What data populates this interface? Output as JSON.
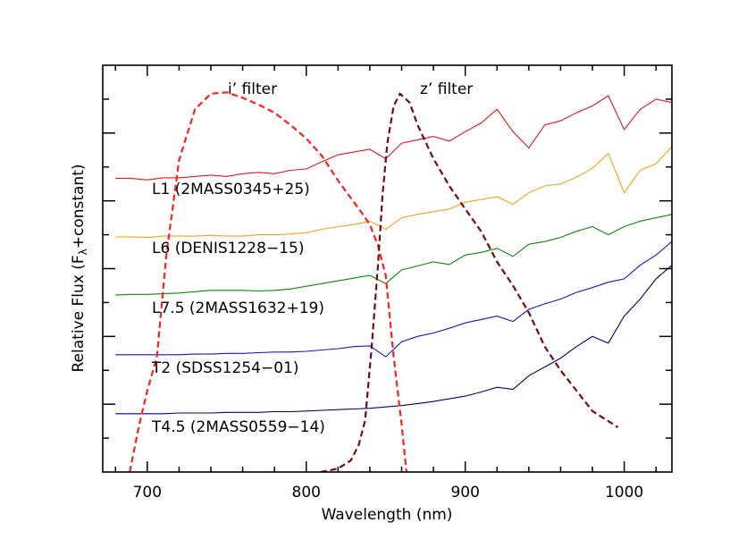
{
  "chart_data": {
    "type": "line",
    "xlabel": "Wavelength (nm)",
    "ylabel": [
      "Relative Flux (F",
      "λ",
      "+constant)"
    ],
    "xlim": [
      672,
      1030
    ],
    "xticks": [
      700,
      800,
      900,
      1000
    ],
    "xminor_ticks": [
      680,
      720,
      740,
      760,
      780,
      820,
      840,
      860,
      880,
      920,
      940,
      960,
      980,
      1020
    ],
    "ylim": [
      0,
      6
    ],
    "yticks": [
      1,
      2,
      3,
      4,
      5
    ],
    "yminor_ticks": [
      0.5,
      1.5,
      2.5,
      3.5,
      4.5,
      5.5
    ],
    "series": [
      {
        "name": "L1 (2MASS0345+25)",
        "color": "#e8141c",
        "style": "solid",
        "x": [
          680,
          690,
          700,
          710,
          720,
          730,
          740,
          750,
          760,
          770,
          780,
          790,
          800,
          810,
          820,
          830,
          840,
          850,
          860,
          870,
          880,
          890,
          900,
          910,
          920,
          930,
          940,
          950,
          960,
          970,
          980,
          990,
          1000,
          1010,
          1020,
          1030
        ],
        "values": [
          4.33,
          4.33,
          4.31,
          4.34,
          4.34,
          4.36,
          4.38,
          4.36,
          4.4,
          4.42,
          4.4,
          4.45,
          4.47,
          4.58,
          4.68,
          4.72,
          4.76,
          4.62,
          4.85,
          4.9,
          4.95,
          4.88,
          5.02,
          5.15,
          5.35,
          5.02,
          4.78,
          5.12,
          5.18,
          5.3,
          5.4,
          5.55,
          5.05,
          5.35,
          5.5,
          5.45
        ]
      },
      {
        "name": "L6 (DENIS1228−15)",
        "color": "#f5a316",
        "style": "solid",
        "x": [
          680,
          690,
          700,
          710,
          720,
          730,
          740,
          750,
          760,
          770,
          780,
          790,
          800,
          810,
          820,
          830,
          840,
          850,
          860,
          870,
          880,
          890,
          900,
          910,
          920,
          930,
          940,
          950,
          960,
          970,
          980,
          990,
          1000,
          1010,
          1020,
          1030
        ],
        "values": [
          3.47,
          3.47,
          3.46,
          3.48,
          3.48,
          3.48,
          3.49,
          3.48,
          3.48,
          3.5,
          3.5,
          3.51,
          3.53,
          3.58,
          3.62,
          3.65,
          3.7,
          3.58,
          3.75,
          3.8,
          3.84,
          3.88,
          3.98,
          4.02,
          4.06,
          3.95,
          4.12,
          4.22,
          4.25,
          4.35,
          4.48,
          4.7,
          4.12,
          4.45,
          4.55,
          4.8
        ]
      },
      {
        "name": "L7.5 (2MASS1632+19)",
        "color": "#0a880a",
        "style": "solid",
        "x": [
          680,
          690,
          700,
          710,
          720,
          730,
          740,
          750,
          760,
          770,
          780,
          790,
          800,
          810,
          820,
          830,
          840,
          850,
          860,
          870,
          880,
          890,
          900,
          910,
          920,
          930,
          940,
          950,
          960,
          970,
          980,
          990,
          1000,
          1010,
          1020,
          1030
        ],
        "values": [
          2.61,
          2.62,
          2.62,
          2.63,
          2.64,
          2.66,
          2.68,
          2.68,
          2.68,
          2.67,
          2.68,
          2.7,
          2.74,
          2.78,
          2.82,
          2.86,
          2.9,
          2.78,
          2.98,
          3.04,
          3.1,
          3.06,
          3.2,
          3.24,
          3.3,
          3.18,
          3.36,
          3.4,
          3.46,
          3.55,
          3.62,
          3.5,
          3.62,
          3.7,
          3.75,
          3.8
        ]
      },
      {
        "name": "T2 (SDSS1254−01)",
        "color": "#1414d2",
        "style": "solid",
        "x": [
          680,
          690,
          700,
          710,
          720,
          730,
          740,
          750,
          760,
          770,
          780,
          790,
          800,
          810,
          820,
          830,
          840,
          850,
          860,
          870,
          880,
          890,
          900,
          910,
          920,
          930,
          940,
          950,
          960,
          970,
          980,
          990,
          1000,
          1010,
          1020,
          1030
        ],
        "values": [
          1.73,
          1.73,
          1.73,
          1.73,
          1.73,
          1.74,
          1.74,
          1.75,
          1.75,
          1.76,
          1.77,
          1.77,
          1.78,
          1.8,
          1.82,
          1.85,
          1.86,
          1.7,
          1.92,
          2.0,
          2.05,
          2.12,
          2.2,
          2.25,
          2.3,
          2.22,
          2.4,
          2.48,
          2.55,
          2.65,
          2.72,
          2.8,
          2.85,
          3.05,
          3.2,
          3.4
        ]
      },
      {
        "name": "T4.5 (2MASS0559−14)",
        "color": "#00007a",
        "style": "solid",
        "x": [
          680,
          690,
          700,
          710,
          720,
          730,
          740,
          750,
          760,
          770,
          780,
          790,
          800,
          810,
          820,
          830,
          840,
          850,
          860,
          870,
          880,
          890,
          900,
          910,
          920,
          930,
          940,
          950,
          960,
          970,
          980,
          990,
          1000,
          1010,
          1020,
          1030
        ],
        "values": [
          0.86,
          0.86,
          0.86,
          0.86,
          0.87,
          0.87,
          0.87,
          0.88,
          0.88,
          0.88,
          0.89,
          0.89,
          0.9,
          0.91,
          0.92,
          0.93,
          0.94,
          0.96,
          0.98,
          1.01,
          1.04,
          1.08,
          1.12,
          1.18,
          1.25,
          1.22,
          1.42,
          1.55,
          1.68,
          1.85,
          2.0,
          1.9,
          2.3,
          2.55,
          2.85,
          3.05
        ]
      },
      {
        "name": "i’ filter",
        "color": "#ff2020",
        "style": "dashed",
        "x": [
          689,
          695,
          700,
          706,
          712,
          720,
          730,
          740,
          750,
          760,
          770,
          780,
          790,
          800,
          810,
          820,
          830,
          835,
          840,
          845,
          850,
          855,
          860,
          863
        ],
        "values": [
          0,
          0.7,
          1.2,
          1.69,
          3.2,
          4.6,
          5.35,
          5.58,
          5.6,
          5.52,
          5.42,
          5.3,
          5.12,
          4.92,
          4.66,
          4.3,
          3.98,
          3.82,
          3.65,
          3.35,
          2.9,
          1.7,
          0.7,
          0
        ]
      },
      {
        "name": "z’ filter",
        "color": "#7a0a0a",
        "style": "dashed",
        "x": [
          809,
          820,
          828,
          833,
          837,
          841,
          845,
          848,
          851,
          855,
          859,
          865,
          870,
          880,
          890,
          900,
          910,
          920,
          930,
          940,
          950,
          960,
          970,
          980,
          990,
          996
        ],
        "values": [
          0,
          0.05,
          0.17,
          0.4,
          0.76,
          1.8,
          3.01,
          4.1,
          4.85,
          5.4,
          5.58,
          5.45,
          5.12,
          4.62,
          4.22,
          3.88,
          3.55,
          3.1,
          2.75,
          2.35,
          1.85,
          1.5,
          1.2,
          0.9,
          0.75,
          0.66
        ]
      }
    ]
  }
}
